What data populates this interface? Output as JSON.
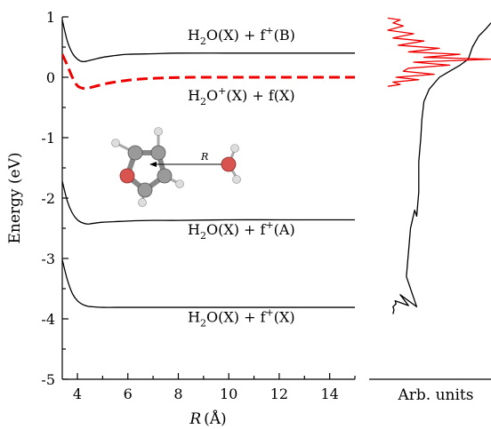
{
  "chart_data": [
    {
      "type": "line",
      "xlabel_var": "R",
      "xlabel_unit": "(Å)",
      "ylabel": "Energy (eV)",
      "xlim": [
        3.4,
        15
      ],
      "ylim": [
        -5,
        1
      ],
      "xticks": [
        4,
        6,
        8,
        10,
        12,
        14
      ],
      "yticks": [
        1,
        0,
        -1,
        -2,
        -3,
        -4,
        -5
      ],
      "series": [
        {
          "x": [
            3.4,
            3.6,
            3.8,
            4.0,
            4.2,
            4.4,
            4.6,
            5.0,
            5.5,
            6,
            7,
            8,
            10,
            12,
            14,
            15
          ],
          "y": [
            0.95,
            0.6,
            0.4,
            0.3,
            0.26,
            0.27,
            0.29,
            0.33,
            0.36,
            0.38,
            0.39,
            0.4,
            0.4,
            0.4,
            0.4,
            0.4
          ],
          "color": "#000000",
          "dash": false
        },
        {
          "x": [
            3.4,
            3.6,
            3.8,
            4.0,
            4.2,
            4.4,
            4.8,
            5.2,
            5.8,
            6.5,
            7.5,
            8.5,
            10,
            12,
            14,
            15
          ],
          "y": [
            0.38,
            0.2,
            0.0,
            -0.14,
            -0.18,
            -0.18,
            -0.14,
            -0.1,
            -0.06,
            -0.03,
            -0.01,
            0.0,
            0.0,
            0.0,
            0.0,
            0.0
          ],
          "color": "#ee0000",
          "dash": true
        },
        {
          "x": [
            3.4,
            3.6,
            3.8,
            4.0,
            4.2,
            4.4,
            4.6,
            5.0,
            5.5,
            6,
            7,
            8,
            10,
            12,
            14,
            15
          ],
          "y": [
            -1.72,
            -2.05,
            -2.25,
            -2.36,
            -2.41,
            -2.43,
            -2.42,
            -2.4,
            -2.39,
            -2.38,
            -2.37,
            -2.37,
            -2.36,
            -2.36,
            -2.36,
            -2.36
          ],
          "color": "#000000",
          "dash": false
        },
        {
          "x": [
            3.4,
            3.6,
            3.8,
            4.0,
            4.2,
            4.4,
            4.6,
            5.0,
            5.5,
            6,
            7,
            8,
            10,
            12,
            14,
            15
          ],
          "y": [
            -3.02,
            -3.35,
            -3.58,
            -3.7,
            -3.76,
            -3.79,
            -3.8,
            -3.81,
            -3.81,
            -3.81,
            -3.81,
            -3.81,
            -3.81,
            -3.81,
            -3.81,
            -3.81
          ],
          "color": "#000000",
          "dash": false
        }
      ],
      "annotations": [
        {
          "base": "H",
          "sub": "2",
          "rest": "O(X) + f",
          "sup": "+",
          "tail": "(B)",
          "at": [
            10.5,
            0.62
          ]
        },
        {
          "base": "H",
          "sub": "2",
          "rest": "O",
          "sup": "+",
          "rest2": "(X) + f(X)",
          "at": [
            10.5,
            -0.38
          ]
        },
        {
          "base": "H",
          "sub": "2",
          "rest": "O(X) + f",
          "sup": "+",
          "tail": "(A)",
          "at": [
            10.5,
            -2.6
          ]
        },
        {
          "base": "H",
          "sub": "2",
          "rest": "O(X) + f",
          "sup": "+",
          "tail": "(X)",
          "at": [
            10.5,
            -4.05
          ]
        }
      ],
      "inset_label": "R"
    },
    {
      "type": "line",
      "xlabel": "Arb. units",
      "ylim": [
        -5,
        1
      ],
      "series": [
        {
          "name": "black spectrum",
          "color": "#000000",
          "x": [
            0.05,
            0.06,
            0.05,
            0.08,
            0.07,
            0.2,
            0.12,
            0.28,
            0.18,
            0.2,
            0.22,
            0.24,
            0.26,
            0.28,
            0.3,
            0.3,
            0.31,
            0.32,
            0.33,
            0.35,
            0.4,
            0.5,
            0.55,
            0.62,
            0.7,
            0.78,
            0.82,
            0.88,
            0.95,
            1.0
          ],
          "y": [
            -3.92,
            -3.85,
            -3.8,
            -3.75,
            -3.7,
            -3.78,
            -3.6,
            -3.8,
            -3.3,
            -2.9,
            -2.5,
            -2.35,
            -2.2,
            -2.3,
            -1.9,
            -1.4,
            -1.2,
            -1.0,
            -0.7,
            -0.4,
            -0.2,
            0.0,
            0.05,
            0.12,
            0.2,
            0.3,
            0.5,
            0.68,
            0.8,
            0.9
          ]
        },
        {
          "name": "red spectrum",
          "color": "#ee0000",
          "x": [
            0.0,
            0.12,
            0.05,
            0.3,
            0.08,
            0.45,
            0.15,
            0.2,
            0.6,
            0.25,
            1.0,
            0.35,
            0.7,
            0.2,
            0.5,
            0.1,
            0.35,
            0.05,
            0.25,
            0.0,
            0.15,
            0.05,
            0.12,
            0.0
          ],
          "y": [
            -0.15,
            -0.12,
            -0.08,
            -0.04,
            0.0,
            0.05,
            0.1,
            0.15,
            0.2,
            0.25,
            0.3,
            0.33,
            0.38,
            0.42,
            0.48,
            0.53,
            0.6,
            0.65,
            0.72,
            0.78,
            0.85,
            0.9,
            0.95,
            0.98
          ]
        }
      ]
    }
  ]
}
